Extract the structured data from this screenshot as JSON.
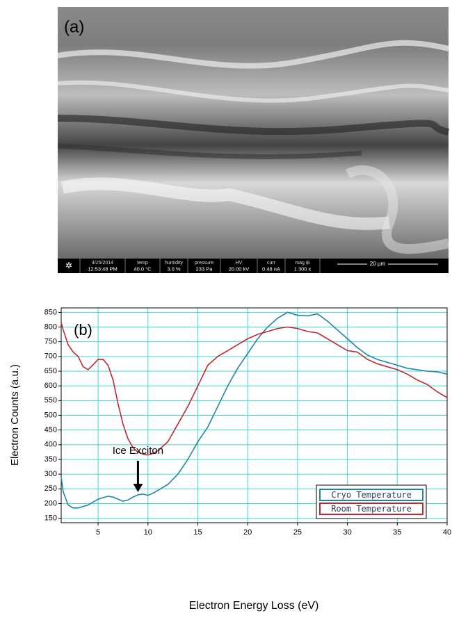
{
  "image_panel": {
    "label": "(a)",
    "info_bar": [
      {
        "label": "4/25/2014",
        "value": "12:53:48 PM"
      },
      {
        "label": "temp",
        "value": "40.0 °C"
      },
      {
        "label": "humidity",
        "value": "3.0 %"
      },
      {
        "label": "pressure",
        "value": "233 Pa"
      },
      {
        "label": "HV",
        "value": "20.00 kV"
      },
      {
        "label": "curr",
        "value": "0.48 nA"
      },
      {
        "label": "mag ⊞",
        "value": "1 300 x"
      }
    ],
    "scale_bar": "20 µm"
  },
  "chart_data": {
    "type": "line",
    "panel_label": "(b)",
    "x_label": "Electron Energy Loss (eV)",
    "y_label": "Electron Counts (a.u.)",
    "x": [
      1.3,
      1.5,
      2,
      2.5,
      3,
      3.5,
      4,
      4.5,
      5,
      5.5,
      6,
      6.5,
      7,
      7.5,
      8,
      8.5,
      9,
      9.5,
      10,
      10.5,
      11,
      12,
      13,
      14,
      15,
      16,
      17,
      18,
      19,
      20,
      21,
      22,
      23,
      24,
      25,
      26,
      27,
      28,
      29,
      30,
      31,
      32,
      33,
      34,
      35,
      36,
      37,
      38,
      39,
      40
    ],
    "series": [
      {
        "name": "Cryo Temperature",
        "color": "#1f85a8",
        "values": [
          290,
          240,
          195,
          185,
          185,
          190,
          195,
          205,
          215,
          220,
          225,
          222,
          215,
          208,
          212,
          222,
          230,
          232,
          228,
          235,
          245,
          265,
          300,
          350,
          410,
          460,
          530,
          600,
          660,
          710,
          760,
          800,
          830,
          850,
          840,
          838,
          845,
          820,
          790,
          760,
          730,
          705,
          690,
          680,
          670,
          660,
          655,
          650,
          648,
          640
        ]
      },
      {
        "name": "Room Temperature",
        "color": "#c0262e",
        "values": [
          815,
          790,
          740,
          715,
          700,
          665,
          655,
          672,
          690,
          690,
          670,
          620,
          540,
          470,
          420,
          390,
          375,
          368,
          365,
          370,
          380,
          410,
          470,
          530,
          600,
          670,
          700,
          720,
          740,
          760,
          775,
          785,
          795,
          800,
          795,
          785,
          780,
          760,
          740,
          720,
          715,
          690,
          675,
          665,
          655,
          640,
          620,
          605,
          580,
          560
        ]
      }
    ],
    "annotations": [
      {
        "text": "Ice Exciton",
        "x": 9,
        "y": 232
      }
    ],
    "xlim": [
      1.3,
      40
    ],
    "xticks": [
      5,
      10,
      15,
      20,
      25,
      30,
      35,
      40
    ],
    "ylim": [
      135,
      865
    ],
    "yticks": [
      150,
      200,
      250,
      300,
      350,
      400,
      450,
      500,
      550,
      600,
      650,
      700,
      750,
      800,
      850
    ],
    "grid": true,
    "grid_color": "#3fd6d6",
    "legend": "lower right"
  }
}
